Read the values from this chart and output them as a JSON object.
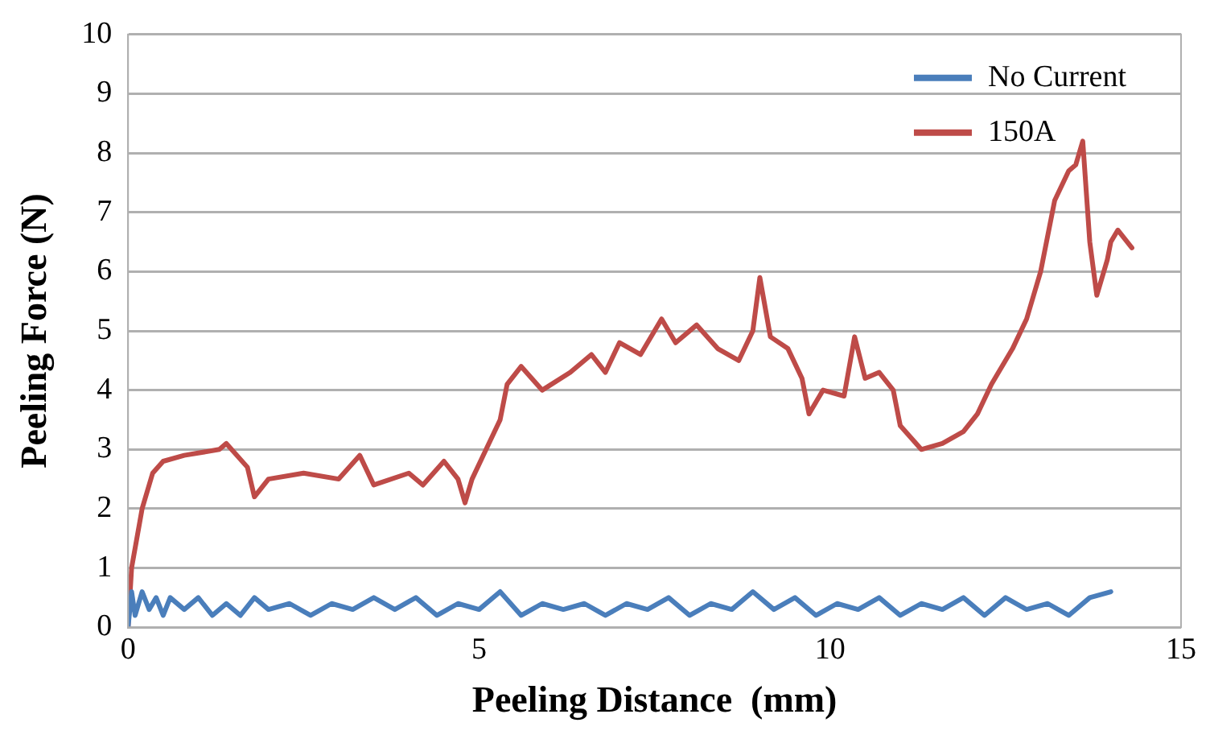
{
  "chart_data": {
    "type": "line",
    "xlabel": "Peeling Distance  (mm)",
    "ylabel": "Peeling Force (N)",
    "xlim": [
      0,
      15
    ],
    "xticks": [
      0,
      5,
      10,
      15
    ],
    "ylim": [
      0,
      10
    ],
    "yticks": [
      0,
      1,
      2,
      3,
      4,
      5,
      6,
      7,
      8,
      9,
      10
    ],
    "grid": "y",
    "legend": "top right",
    "marker": "none",
    "line_style": "solid",
    "series": [
      {
        "name": "No Current",
        "color": "#4a7ebb",
        "x": [
          0,
          0.05,
          0.1,
          0.2,
          0.3,
          0.4,
          0.5,
          0.6,
          0.8,
          1.0,
          1.2,
          1.4,
          1.6,
          1.8,
          2.0,
          2.3,
          2.6,
          2.9,
          3.2,
          3.5,
          3.8,
          4.1,
          4.4,
          4.7,
          5.0,
          5.3,
          5.6,
          5.9,
          6.2,
          6.5,
          6.8,
          7.1,
          7.4,
          7.7,
          8.0,
          8.3,
          8.6,
          8.9,
          9.2,
          9.5,
          9.8,
          10.1,
          10.4,
          10.7,
          11.0,
          11.3,
          11.6,
          11.9,
          12.2,
          12.5,
          12.8,
          13.1,
          13.4,
          13.7,
          14.0
        ],
        "values": [
          0,
          0.6,
          0.2,
          0.6,
          0.3,
          0.5,
          0.2,
          0.5,
          0.3,
          0.5,
          0.2,
          0.4,
          0.2,
          0.5,
          0.3,
          0.4,
          0.2,
          0.4,
          0.3,
          0.5,
          0.3,
          0.5,
          0.2,
          0.4,
          0.3,
          0.6,
          0.2,
          0.4,
          0.3,
          0.4,
          0.2,
          0.4,
          0.3,
          0.5,
          0.2,
          0.4,
          0.3,
          0.6,
          0.3,
          0.5,
          0.2,
          0.4,
          0.3,
          0.5,
          0.2,
          0.4,
          0.3,
          0.5,
          0.2,
          0.5,
          0.3,
          0.4,
          0.2,
          0.5,
          0.6
        ]
      },
      {
        "name": "150A",
        "color": "#be4b48",
        "x": [
          0,
          0.05,
          0.2,
          0.35,
          0.5,
          0.8,
          1.3,
          1.4,
          1.7,
          1.8,
          2.0,
          2.5,
          3.0,
          3.3,
          3.5,
          4.0,
          4.2,
          4.5,
          4.7,
          4.8,
          4.9,
          5.1,
          5.3,
          5.4,
          5.6,
          5.9,
          6.3,
          6.6,
          6.8,
          7.0,
          7.3,
          7.6,
          7.8,
          8.1,
          8.4,
          8.7,
          8.9,
          9.0,
          9.15,
          9.4,
          9.6,
          9.7,
          9.9,
          10.2,
          10.35,
          10.5,
          10.7,
          10.9,
          11.0,
          11.3,
          11.6,
          11.9,
          12.1,
          12.3,
          12.6,
          12.8,
          13.0,
          13.2,
          13.4,
          13.5,
          13.6,
          13.7,
          13.8,
          13.95,
          14.0,
          14.1,
          14.3
        ],
        "values": [
          0,
          1,
          2,
          2.6,
          2.8,
          2.9,
          3.0,
          3.1,
          2.7,
          2.2,
          2.5,
          2.6,
          2.5,
          2.9,
          2.4,
          2.6,
          2.4,
          2.8,
          2.5,
          2.1,
          2.5,
          3.0,
          3.5,
          4.1,
          4.4,
          4.0,
          4.3,
          4.6,
          4.3,
          4.8,
          4.6,
          5.2,
          4.8,
          5.1,
          4.7,
          4.5,
          5.0,
          5.9,
          4.9,
          4.7,
          4.2,
          3.6,
          4.0,
          3.9,
          4.9,
          4.2,
          4.3,
          4.0,
          3.4,
          3.0,
          3.1,
          3.3,
          3.6,
          4.1,
          4.7,
          5.2,
          6.0,
          7.2,
          7.7,
          7.8,
          8.2,
          6.5,
          5.6,
          6.2,
          6.5,
          6.7,
          6.4
        ]
      }
    ]
  }
}
